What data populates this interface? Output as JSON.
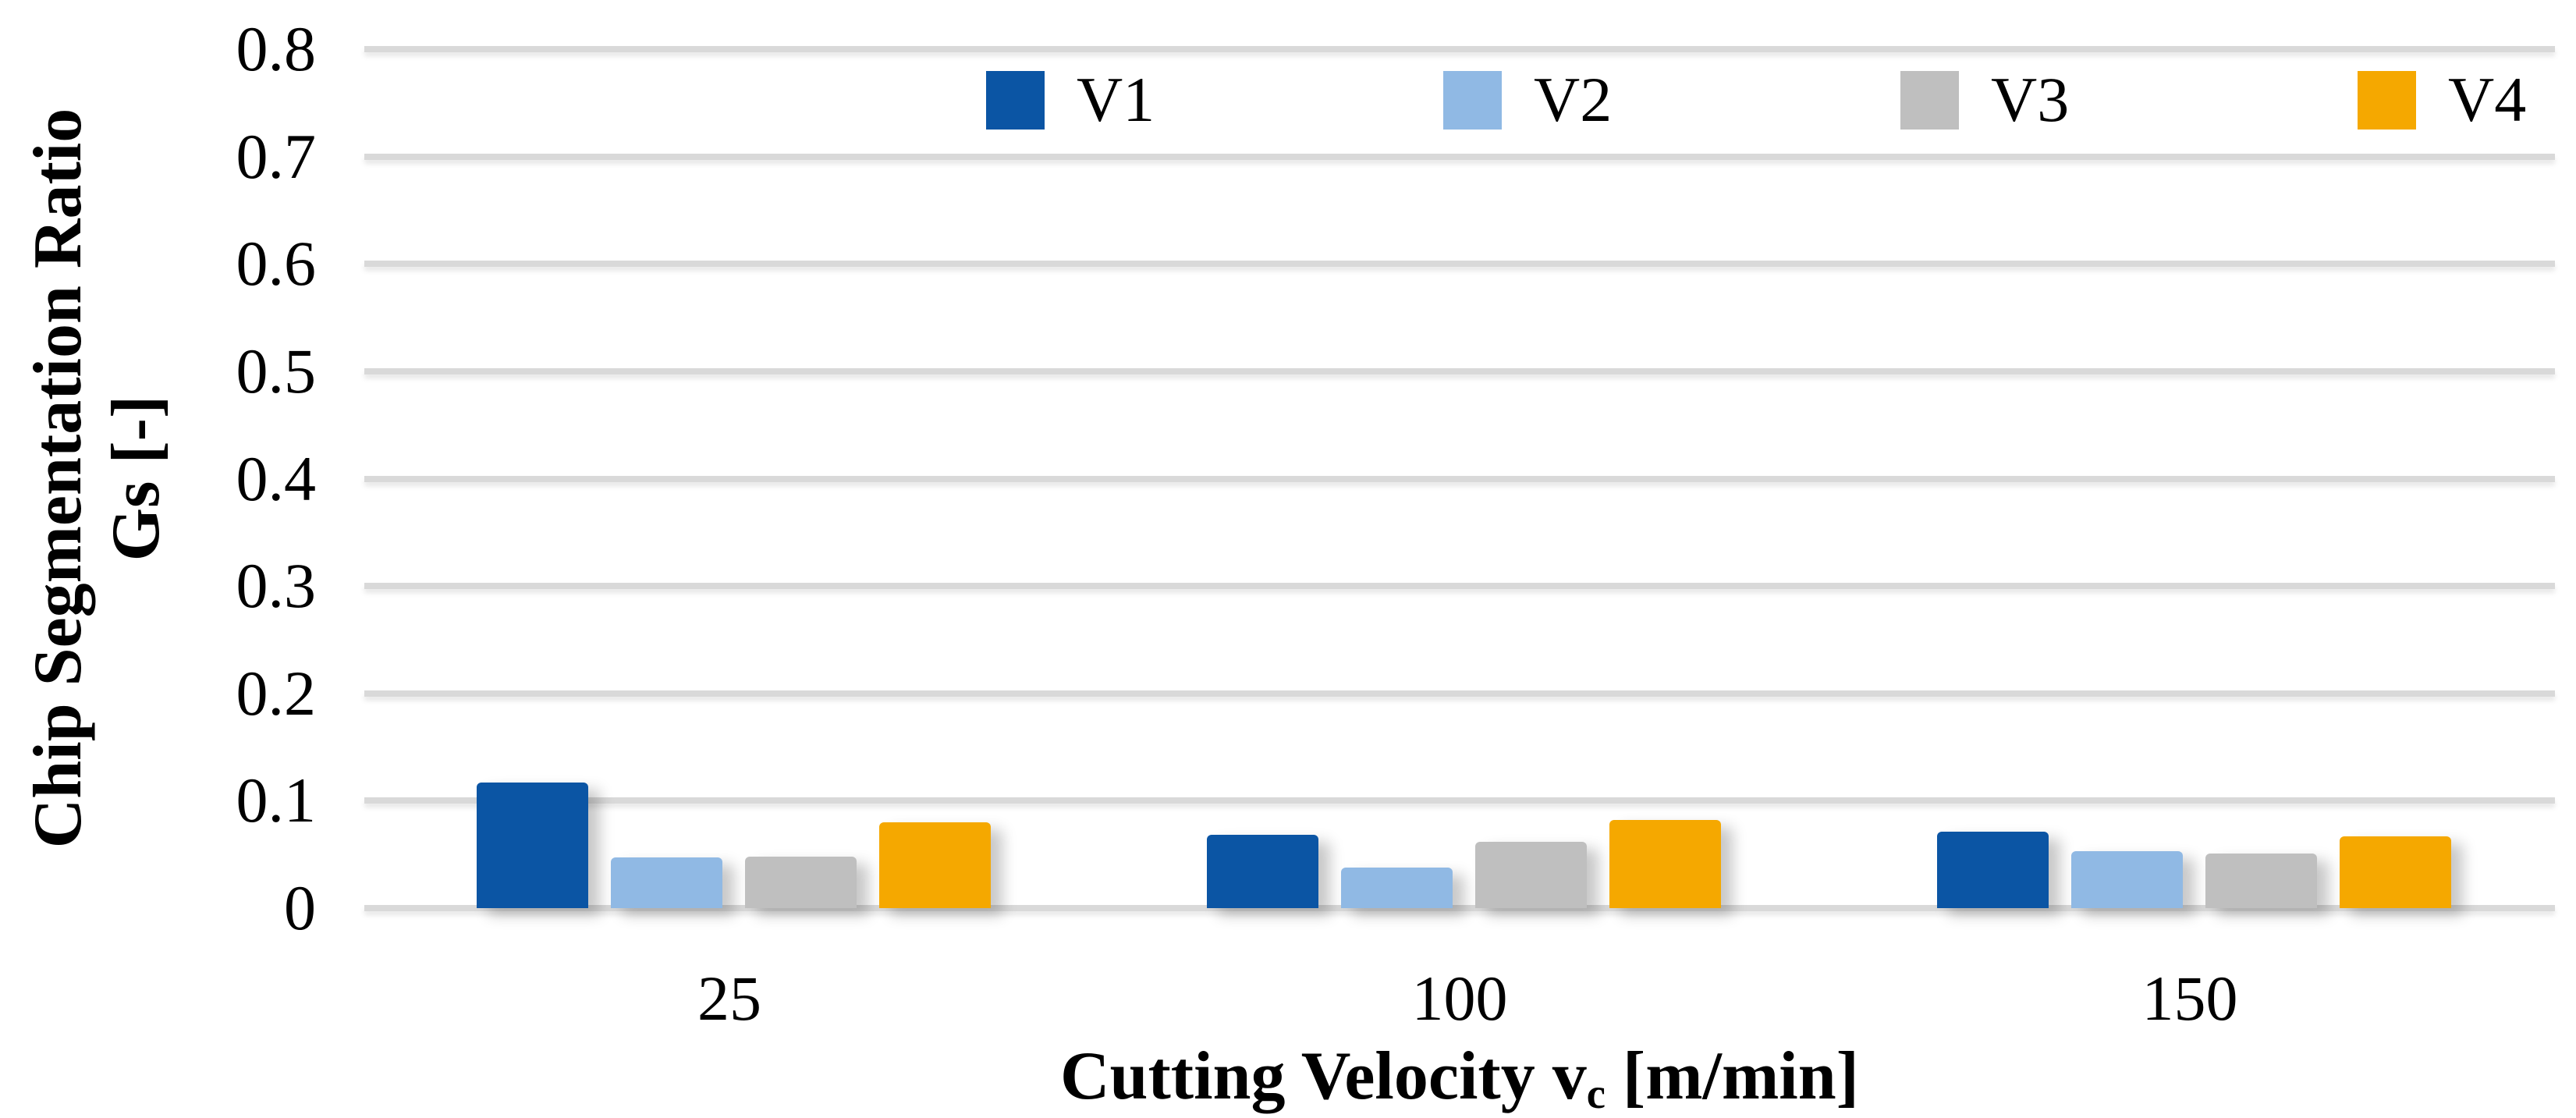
{
  "figure": {
    "background": "#FFFFFF",
    "text_color": "#000000",
    "gridline_color": "#D9D9D9"
  },
  "chart_data": {
    "type": "bar",
    "title": "",
    "categories": [
      "25",
      "100",
      "150"
    ],
    "series": [
      {
        "name": "V1",
        "color": "#0B55A4",
        "values": [
          0.117,
          0.068,
          0.071
        ]
      },
      {
        "name": "V2",
        "color": "#90B9E4",
        "values": [
          0.047,
          0.038,
          0.053
        ]
      },
      {
        "name": "V3",
        "color": "#BFBFBF",
        "values": [
          0.048,
          0.062,
          0.051
        ]
      },
      {
        "name": "V4",
        "color": "#F5A800",
        "values": [
          0.08,
          0.082,
          0.067
        ]
      }
    ],
    "legend": [
      "V1",
      "V2",
      "V3",
      "V4"
    ],
    "legend_position": "top",
    "grid": true,
    "ylim": [
      0,
      0.8
    ],
    "ytick_step": 0.1,
    "yticks": [
      "0.8",
      "0.7",
      "0.6",
      "0.5",
      "0.4",
      "0.3",
      "0.2",
      "0.1",
      "0"
    ],
    "ylabel_line1": "Chip Segmentation Ratio",
    "ylabel_line2": "Gs [-]",
    "xlabel": {
      "main": "Cutting Velocity v",
      "sub": "c",
      "unit": " [m/min]"
    }
  }
}
